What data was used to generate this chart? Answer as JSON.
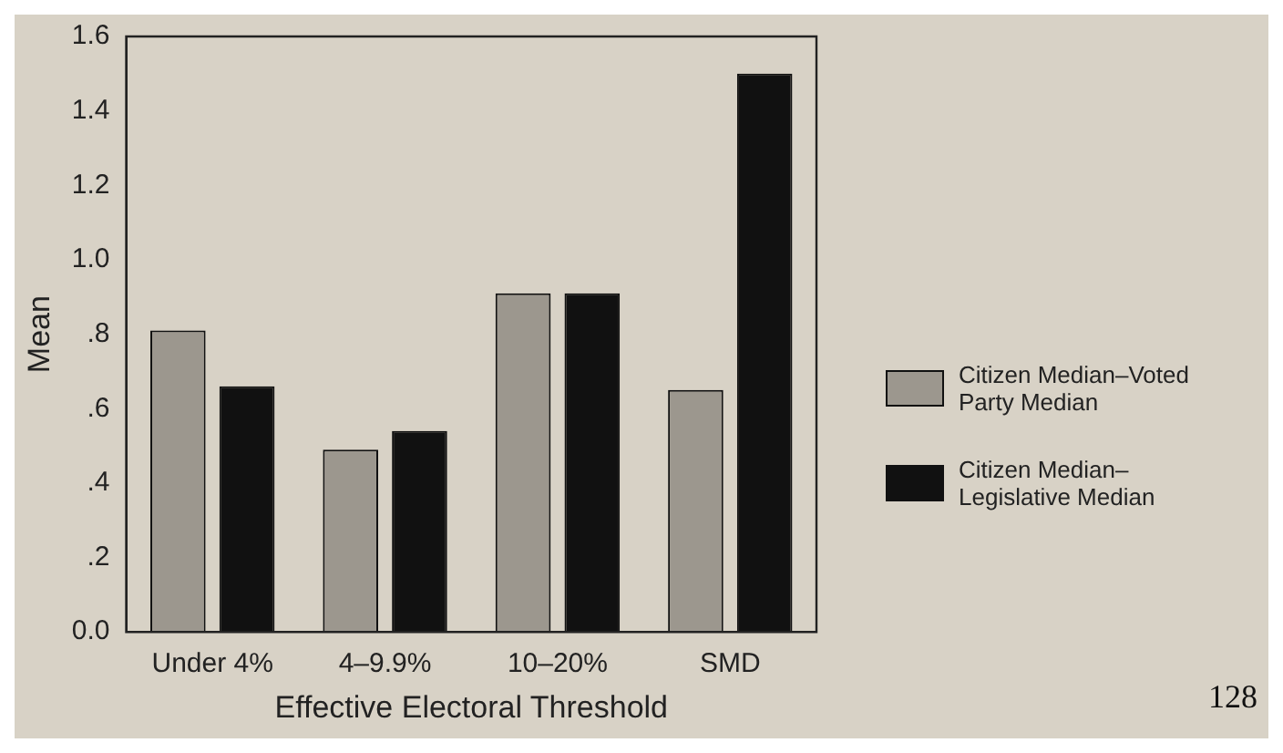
{
  "chart_data": {
    "type": "bar",
    "xlabel": "Effective Electoral Threshold",
    "ylabel": "Mean",
    "categories": [
      "Under 4%",
      "4–9.9%",
      "10–20%",
      "SMD"
    ],
    "series": [
      {
        "name": "Citizen Median–Voted Party Median",
        "color": "#9c978e",
        "values": [
          0.81,
          0.49,
          0.91,
          0.65
        ]
      },
      {
        "name": "Citizen Median–Legislative Median",
        "color": "#111111",
        "values": [
          0.66,
          0.54,
          0.91,
          1.5
        ]
      }
    ],
    "ylim": [
      0,
      1.6
    ],
    "yticks": [
      {
        "value": 0,
        "label": "0.0"
      },
      {
        "value": 0.2,
        "label": ".2"
      },
      {
        "value": 0.4,
        "label": ".4"
      },
      {
        "value": 0.6,
        "label": ".6"
      },
      {
        "value": 0.8,
        "label": ".8"
      },
      {
        "value": 1,
        "label": "1.0"
      },
      {
        "value": 1.2,
        "label": "1.2"
      },
      {
        "value": 1.4,
        "label": "1.4"
      },
      {
        "value": 1.6,
        "label": "1.6"
      }
    ],
    "grid": false,
    "legend": "right",
    "annotations": [
      "128"
    ]
  }
}
